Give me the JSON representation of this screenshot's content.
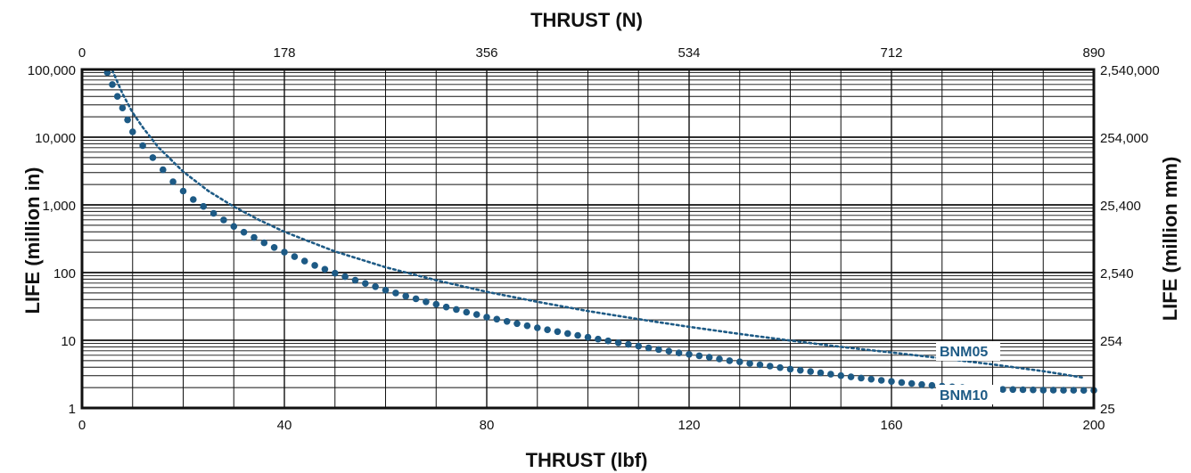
{
  "chart_data": {
    "type": "line",
    "title": "",
    "xlabel": "THRUST (lbf)",
    "x2label": "THRUST (N)",
    "ylabel": "LIFE (million in)",
    "y2label": "LIFE (million mm)",
    "x_ticks": [
      "0",
      "40",
      "80",
      "120",
      "160",
      "200"
    ],
    "x2_ticks": [
      "0",
      "178",
      "356",
      "534",
      "712",
      "890"
    ],
    "y_ticks": [
      "1",
      "10",
      "100",
      "1,000",
      "10,000",
      "100,000"
    ],
    "y2_ticks": [
      "25",
      "254",
      "2,540",
      "25,400",
      "254,000",
      "2,540,000"
    ],
    "xlim": [
      0,
      200
    ],
    "ylim": [
      1,
      100000
    ],
    "y_scale": "log",
    "grid": true,
    "colors": {
      "series": "#1d5a85",
      "grid": "#111111"
    },
    "series": [
      {
        "name": "BNM05",
        "style": "dotted",
        "x": [
          6,
          8,
          10,
          12,
          15,
          20,
          25,
          30,
          35,
          40,
          50,
          60,
          70,
          80,
          90,
          100,
          110,
          120,
          130,
          140,
          150,
          160,
          170,
          180,
          190,
          198
        ],
        "y": [
          97000,
          44000,
          23000,
          14000,
          7200,
          3100,
          1600,
          940,
          600,
          400,
          205,
          120,
          77,
          52,
          37,
          27,
          20.5,
          15.8,
          12.4,
          9.9,
          8.0,
          6.6,
          5.4,
          4.4,
          3.5,
          2.8
        ]
      },
      {
        "name": "BNM10",
        "style": "large-dots",
        "x": [
          5,
          6,
          7,
          8,
          9,
          10,
          12,
          14,
          16,
          18,
          20,
          22,
          24,
          26,
          28,
          30,
          32,
          34,
          36,
          38,
          40,
          42,
          44,
          46,
          48,
          50,
          52,
          54,
          56,
          58,
          60,
          62,
          64,
          66,
          68,
          70,
          72,
          74,
          76,
          78,
          80,
          82,
          84,
          86,
          88,
          90,
          92,
          94,
          96,
          98,
          100,
          102,
          104,
          106,
          108,
          110,
          112,
          114,
          116,
          118,
          120,
          122,
          124,
          126,
          128,
          130,
          132,
          134,
          136,
          138,
          140,
          142,
          144,
          146,
          148,
          150,
          152,
          154,
          156,
          158,
          160,
          162,
          164,
          166,
          168,
          170,
          172,
          174,
          176,
          178,
          180,
          182,
          184,
          186,
          188,
          190,
          192,
          194,
          196,
          198,
          200
        ],
        "y": [
          90000,
          60000,
          40000,
          27000,
          18000,
          12000,
          7500,
          5000,
          3300,
          2200,
          1600,
          1200,
          950,
          750,
          600,
          480,
          395,
          330,
          275,
          235,
          200,
          172,
          148,
          128,
          112,
          98,
          87,
          77,
          69,
          62,
          55,
          50,
          45,
          41,
          37,
          34,
          31,
          28.5,
          26,
          24,
          22,
          20.5,
          19,
          17.6,
          16.4,
          15.3,
          14.3,
          13.4,
          12.6,
          11.8,
          11.1,
          10.4,
          9.8,
          9.2,
          8.7,
          8.2,
          7.7,
          7.3,
          6.9,
          6.5,
          6.2,
          5.9,
          5.6,
          5.3,
          5.0,
          4.8,
          4.55,
          4.35,
          4.15,
          3.95,
          3.75,
          3.6,
          3.45,
          3.3,
          3.15,
          3.0,
          2.88,
          2.77,
          2.66,
          2.56,
          2.47,
          2.38,
          2.3,
          2.22,
          2.15,
          2.1,
          2.05,
          2.0,
          1.96,
          1.92,
          1.9,
          1.88,
          1.87,
          1.86,
          1.85,
          1.84,
          1.84,
          1.83,
          1.83,
          1.82,
          1.82
        ]
      }
    ]
  }
}
